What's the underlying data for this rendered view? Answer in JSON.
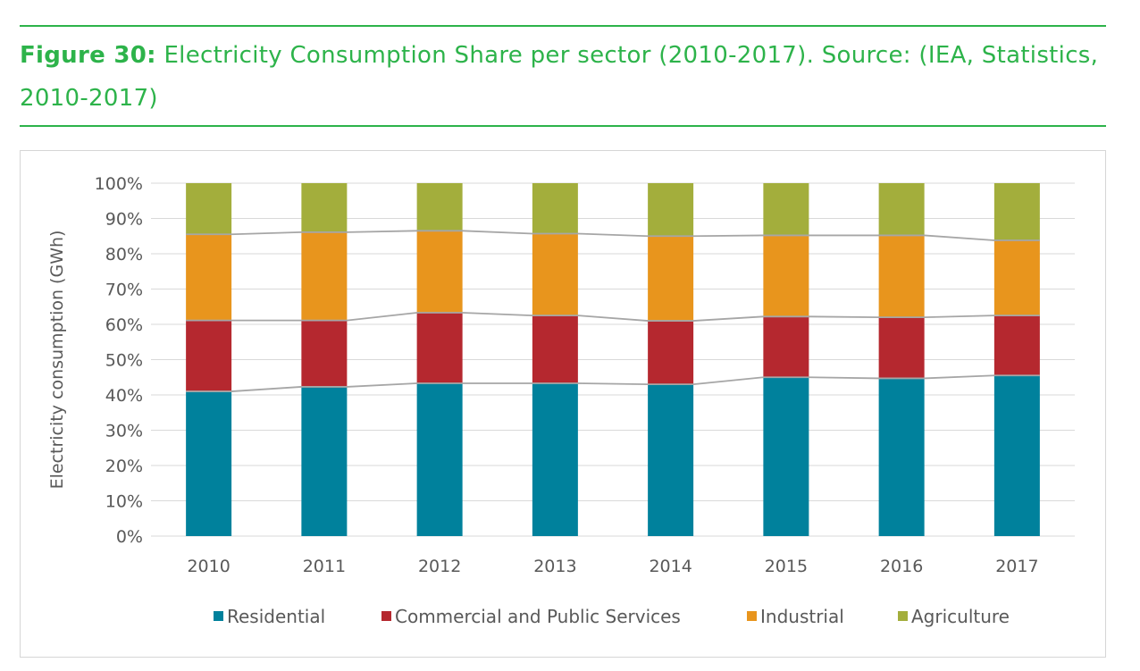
{
  "caption": {
    "label": "Figure 30:",
    "text": " Electricity Consumption Share per sector (2010-2017). Source: (IEA, Statistics, 2010-2017)"
  },
  "colors": {
    "accent": "#2db34a",
    "grid": "#d9d9d9",
    "series_lines": "#a6a6a6"
  },
  "chart_data": {
    "type": "bar",
    "stacked": true,
    "title": "",
    "xlabel": "",
    "ylabel": "Electricity consumption (GWh)",
    "ylim": [
      0,
      100
    ],
    "yticks": [
      "0%",
      "10%",
      "20%",
      "30%",
      "40%",
      "50%",
      "60%",
      "70%",
      "80%",
      "90%",
      "100%"
    ],
    "grid": true,
    "legend_position": "bottom",
    "categories": [
      "2010",
      "2011",
      "2012",
      "2013",
      "2014",
      "2015",
      "2016",
      "2017"
    ],
    "series": [
      {
        "name": "Residential",
        "color": "#00819c",
        "values": [
          41,
          42.3,
          43.3,
          43.3,
          43,
          45,
          44.7,
          45.5
        ]
      },
      {
        "name": "Commercial and Public Services",
        "color": "#b5282f",
        "values": [
          20.1,
          18.8,
          20,
          19.2,
          18,
          17.2,
          17.3,
          17
        ]
      },
      {
        "name": "Industrial",
        "color": "#e8951d",
        "values": [
          24.4,
          25,
          23.2,
          23.2,
          24,
          23,
          23.2,
          21.3
        ]
      },
      {
        "name": "Agriculture",
        "color": "#a3ae3c",
        "values": [
          14.5,
          13.9,
          13.5,
          14.3,
          15,
          14.8,
          14.8,
          16.2
        ]
      }
    ]
  }
}
